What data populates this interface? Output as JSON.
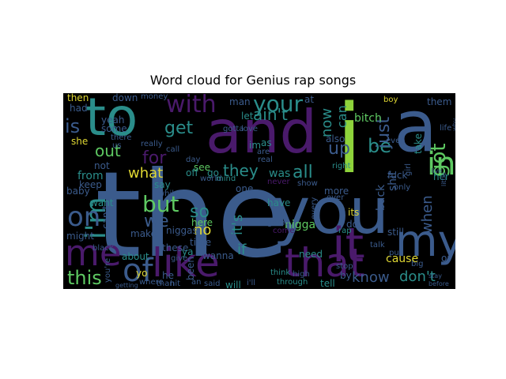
{
  "title": "Word cloud for Genius rap songs",
  "colors": {
    "background": "#000000",
    "palette": [
      "#440154",
      "#3b528b",
      "#21908c",
      "#5ec962",
      "#fde725"
    ]
  },
  "words": [
    {
      "text": "the",
      "color": "#3b5b8c"
    },
    {
      "text": "you",
      "color": "#3b5b8c"
    },
    {
      "text": "and",
      "color": "#4a1a6b"
    },
    {
      "text": "i",
      "color": "#8ed33b"
    },
    {
      "text": "a",
      "color": "#3b5b8c"
    },
    {
      "text": "to",
      "color": "#2a8d8a"
    },
    {
      "text": "like",
      "color": "#4a1a6b"
    },
    {
      "text": "that",
      "color": "#4a1a6b"
    },
    {
      "text": "it",
      "color": "#4a1a6b"
    },
    {
      "text": "of",
      "color": "#3b5b8c"
    },
    {
      "text": "my",
      "color": "#3b5b8c"
    },
    {
      "text": "me",
      "color": "#4a1a6b"
    },
    {
      "text": "in",
      "color": "#5ec962"
    },
    {
      "text": "with",
      "color": "#4a1a6b"
    },
    {
      "text": "i'm",
      "color": "#2a8d8a"
    },
    {
      "text": "your",
      "color": "#2a8d8a"
    },
    {
      "text": "on",
      "color": "#3b5b8c"
    },
    {
      "text": "is",
      "color": "#3b5b8c"
    },
    {
      "text": "but",
      "color": "#5ec962"
    },
    {
      "text": "this",
      "color": "#5ec962"
    },
    {
      "text": "got",
      "color": "#5ec962"
    },
    {
      "text": "be",
      "color": "#2a8d8a"
    },
    {
      "text": "get",
      "color": "#2a8d8a"
    },
    {
      "text": "for",
      "color": "#4a1a6b"
    },
    {
      "text": "ain't",
      "color": "#2a8d8a"
    },
    {
      "text": "all",
      "color": "#2a8d8a"
    },
    {
      "text": "we",
      "color": "#3b5b8c"
    },
    {
      "text": "so",
      "color": "#2a8d8a"
    },
    {
      "text": "they",
      "color": "#2a8d8a"
    },
    {
      "text": "up",
      "color": "#3b5b8c"
    },
    {
      "text": "just",
      "color": "#3b5b8c"
    },
    {
      "text": "out",
      "color": "#5ec962"
    },
    {
      "text": "what",
      "color": "#e0d833"
    },
    {
      "text": "when",
      "color": "#3b5b8c"
    },
    {
      "text": "know",
      "color": "#3b5b8c"
    },
    {
      "text": "don't",
      "color": "#2a8d8a"
    },
    {
      "text": "it's",
      "color": "#2a8d8a"
    },
    {
      "text": "if",
      "color": "#2a8d8a"
    },
    {
      "text": "no",
      "color": "#e0d833"
    },
    {
      "text": "now",
      "color": "#2a8d8a"
    },
    {
      "text": "can",
      "color": "#2a8d8a"
    },
    {
      "text": "was",
      "color": "#2a8d8a"
    },
    {
      "text": "from",
      "color": "#2a8d8a"
    },
    {
      "text": "shit",
      "color": "#3b5b8c"
    },
    {
      "text": "cause",
      "color": "#e0d833"
    },
    {
      "text": "nigga",
      "color": "#5ec962"
    },
    {
      "text": "back",
      "color": "#3b5b8c"
    },
    {
      "text": "bitch",
      "color": "#5ec962"
    },
    {
      "text": "take",
      "color": "#2a8d8a"
    },
    {
      "text": "then",
      "color": "#e0d833"
    },
    {
      "text": "them",
      "color": "#3b5b8c"
    },
    {
      "text": "she",
      "color": "#e0d833"
    },
    {
      "text": "down",
      "color": "#3b5b8c"
    },
    {
      "text": "yeah",
      "color": "#3b5b8c"
    },
    {
      "text": "some",
      "color": "#3b5b8c"
    },
    {
      "text": "not",
      "color": "#3b5b8c"
    },
    {
      "text": "want",
      "color": "#2a8d8a"
    },
    {
      "text": "might",
      "color": "#3b5b8c"
    },
    {
      "text": "see",
      "color": "#5ec962"
    },
    {
      "text": "here",
      "color": "#5ec962"
    },
    {
      "text": "time",
      "color": "#3b5b8c"
    },
    {
      "text": "say",
      "color": "#2a8d8a"
    },
    {
      "text": "make",
      "color": "#3b5b8c"
    },
    {
      "text": "about",
      "color": "#2a8d8a"
    },
    {
      "text": "niggas",
      "color": "#3b5b8c"
    },
    {
      "text": "off",
      "color": "#2a8d8a"
    },
    {
      "text": "go",
      "color": "#2a8d8a"
    },
    {
      "text": "im",
      "color": "#2a8d8a"
    },
    {
      "text": "as",
      "color": "#2a8d8a"
    },
    {
      "text": "let",
      "color": "#2a8d8a"
    },
    {
      "text": "man",
      "color": "#3b5b8c"
    },
    {
      "text": "at",
      "color": "#3b5b8c"
    },
    {
      "text": "one",
      "color": "#3b5b8c"
    },
    {
      "text": "have",
      "color": "#2a8d8a"
    },
    {
      "text": "also",
      "color": "#3b5b8c"
    },
    {
      "text": "need",
      "color": "#2a8d8a"
    },
    {
      "text": "still",
      "color": "#3b5b8c"
    },
    {
      "text": "her",
      "color": "#2a8d8a"
    },
    {
      "text": "more",
      "color": "#3b5b8c"
    },
    {
      "text": "do",
      "color": "#3b5b8c"
    },
    {
      "text": "its",
      "color": "#e0d833"
    },
    {
      "text": "fuck",
      "color": "#3b5b8c"
    },
    {
      "text": "keep",
      "color": "#3b5b8c"
    },
    {
      "text": "baby",
      "color": "#3b5b8c"
    },
    {
      "text": "can't",
      "color": "#3b5b8c"
    },
    {
      "text": "had",
      "color": "#3b5b8c"
    },
    {
      "text": "been",
      "color": "#3b5b8c"
    },
    {
      "text": "these",
      "color": "#3b5b8c"
    },
    {
      "text": "wanna",
      "color": "#3b5b8c"
    },
    {
      "text": "ya",
      "color": "#2a8d8a"
    },
    {
      "text": "yo",
      "color": "#e0d833"
    },
    {
      "text": "he",
      "color": "#3b5b8c"
    },
    {
      "text": "by",
      "color": "#3b5b8c"
    },
    {
      "text": "or",
      "color": "#3b5b8c"
    },
    {
      "text": "will",
      "color": "#2a8d8a"
    },
    {
      "text": "tell",
      "color": "#2a8d8a"
    },
    {
      "text": "than",
      "color": "#3b5b8c"
    },
    {
      "text": "hit",
      "color": "#3b5b8c"
    },
    {
      "text": "said",
      "color": "#3b5b8c"
    },
    {
      "text": "through",
      "color": "#2a8d8a"
    },
    {
      "text": "think",
      "color": "#2a8d8a"
    },
    {
      "text": "right",
      "color": "#2a8d8a"
    },
    {
      "text": "money",
      "color": "#3b5b8c"
    },
    {
      "text": "gotta",
      "color": "#3b5b8c"
    },
    {
      "text": "love",
      "color": "#3b5b8c"
    },
    {
      "text": "are",
      "color": "#3b5b8c"
    },
    {
      "text": "really",
      "color": "#3b5b8c"
    },
    {
      "text": "there",
      "color": "#3b5b8c"
    },
    {
      "text": "rap",
      "color": "#2a8d8a"
    },
    {
      "text": "boy",
      "color": "#e0d833"
    },
    {
      "text": "life",
      "color": "#3b5b8c"
    },
    {
      "text": "even",
      "color": "#3b5b8c"
    },
    {
      "text": "girl",
      "color": "#3b5b8c"
    },
    {
      "text": "only",
      "color": "#3b5b8c"
    },
    {
      "text": "put",
      "color": "#3b5b8c"
    },
    {
      "text": "big",
      "color": "#3b5b8c"
    },
    {
      "text": "come",
      "color": "#4a1a6b"
    },
    {
      "text": "never",
      "color": "#4a1a6b"
    },
    {
      "text": "give",
      "color": "#3b5b8c"
    },
    {
      "text": "stop",
      "color": "#3b5b8c"
    },
    {
      "text": "game",
      "color": "#3b5b8c"
    },
    {
      "text": "every",
      "color": "#3b5b8c"
    },
    {
      "text": "us",
      "color": "#3b5b8c"
    },
    {
      "text": "call",
      "color": "#3b5b8c"
    },
    {
      "text": "where",
      "color": "#3b5b8c"
    },
    {
      "text": "you're",
      "color": "#3b5b8c"
    },
    {
      "text": "while",
      "color": "#3b5b8c"
    },
    {
      "text": "black",
      "color": "#3b5b8c"
    },
    {
      "text": "show",
      "color": "#3b5b8c"
    },
    {
      "text": "day",
      "color": "#3b5b8c"
    },
    {
      "text": "real",
      "color": "#3b5b8c"
    },
    {
      "text": "getting",
      "color": "#3b5b8c"
    },
    {
      "text": "i'll",
      "color": "#3b5b8c"
    },
    {
      "text": "before",
      "color": "#3b5b8c"
    },
    {
      "text": "stay",
      "color": "#3b5b8c"
    },
    {
      "text": "little",
      "color": "#3b5b8c"
    },
    {
      "text": "world",
      "color": "#3b5b8c"
    },
    {
      "text": "mind",
      "color": "#2a8d8a"
    },
    {
      "text": "high",
      "color": "#3b5b8c"
    },
    {
      "text": "talk",
      "color": "#3b5b8c"
    },
    {
      "text": "an",
      "color": "#3b5b8c"
    },
    {
      "text": "over",
      "color": "#3b5b8c"
    },
    {
      "text": "live",
      "color": "#3b5b8c"
    },
    {
      "text": "why",
      "color": "#3b5b8c"
    }
  ]
}
